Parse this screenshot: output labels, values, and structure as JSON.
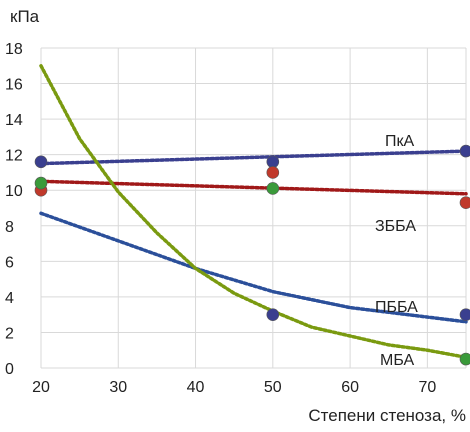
{
  "chart_data": {
    "type": "scatter",
    "title": "",
    "xlabel": "Степени стеноза, %",
    "ylabel": "кПа",
    "xlim": [
      20,
      75
    ],
    "ylim": [
      0,
      18
    ],
    "x_ticks": [
      20,
      30,
      40,
      50,
      60,
      70
    ],
    "y_ticks": [
      0,
      2,
      4,
      6,
      8,
      10,
      12,
      14,
      16,
      18
    ],
    "grid": true,
    "series": [
      {
        "name": "ПкА",
        "color": "#3a3f8f",
        "line_color": "#3a3f8f",
        "x": [
          20,
          50,
          75
        ],
        "values": [
          11.6,
          11.6,
          12.2
        ],
        "trend": [
          [
            20,
            11.5
          ],
          [
            75,
            12.2
          ]
        ]
      },
      {
        "name": "ЗББА",
        "color": "#c0392b",
        "line_color": "#a01818",
        "x": [
          20,
          50,
          75
        ],
        "values": [
          10.0,
          11.0,
          9.3
        ],
        "trend": [
          [
            20,
            10.5
          ],
          [
            75,
            9.8
          ]
        ]
      },
      {
        "name": "ПББА",
        "color": "#3a3f8f",
        "line_color": "#2b4f9a",
        "x": [
          50,
          75
        ],
        "values": [
          3.0,
          3.0
        ],
        "trend": [
          [
            20,
            8.7
          ],
          [
            40,
            5.6
          ],
          [
            50,
            4.3
          ],
          [
            60,
            3.4
          ],
          [
            75,
            2.6
          ]
        ]
      },
      {
        "name": "МБА",
        "color": "#3a9a3a",
        "line_color": "#7a9a10",
        "x": [
          20,
          50,
          75
        ],
        "values": [
          10.4,
          10.1,
          0.5
        ],
        "trend": [
          [
            20,
            17.0
          ],
          [
            25,
            12.9
          ],
          [
            30,
            9.9
          ],
          [
            35,
            7.6
          ],
          [
            40,
            5.6
          ],
          [
            45,
            4.2
          ],
          [
            50,
            3.2
          ],
          [
            55,
            2.3
          ],
          [
            60,
            1.8
          ],
          [
            65,
            1.3
          ],
          [
            70,
            1.0
          ],
          [
            75,
            0.6
          ]
        ]
      }
    ]
  }
}
